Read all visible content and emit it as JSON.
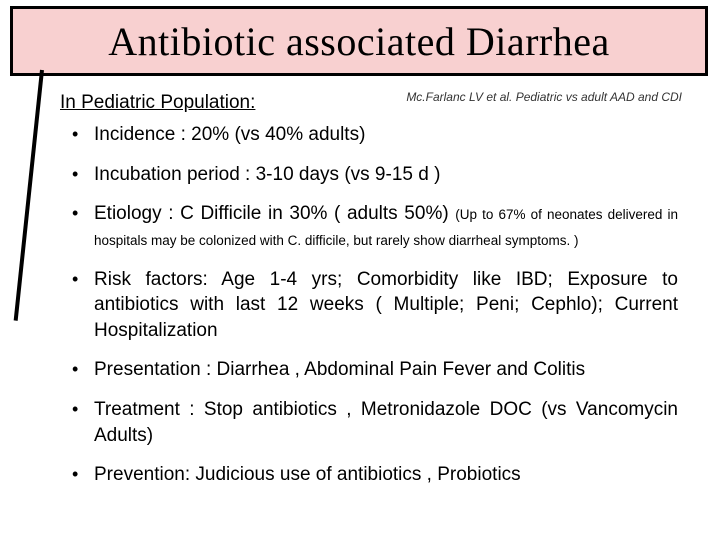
{
  "colors": {
    "title_bg": "#f8d0d0",
    "title_border": "#000000",
    "text": "#000000",
    "background": "#ffffff"
  },
  "typography": {
    "title_font": "Georgia serif",
    "title_size_pt": 40,
    "body_font": "Trebuchet MS sans-serif",
    "body_size_pt": 19,
    "fine_size_pt": 13.5
  },
  "title": "Antibiotic associated Diarrhea",
  "citation": {
    "author": "Mc.Farlanc LV",
    "etal": " et al. ",
    "tail": "Pediatric vs adult AAD and CDI"
  },
  "subhead": "In Pediatric Population:",
  "bullets": [
    {
      "parts": [
        "Incidence : 20% (vs 40% adults)"
      ]
    },
    {
      "parts": [
        "Incubation period : 3-10 days (vs 9-15 d )"
      ]
    },
    {
      "parts": [
        "Etiology : C Difficile in 30%   ( adults 50%) ",
        "(Up to 67% of neonates delivered in hospitals may be colonized with  C. difficile, but rarely show diarrheal symptoms. )"
      ],
      "fine_from": 1
    },
    {
      "parts": [
        "Risk factors: Age 1-4 yrs; Comorbidity like IBD; Exposure to antibiotics with last 12 weeks ( Multiple; Peni; Cephlo); Current Hospitalization"
      ]
    },
    {
      "parts": [
        "Presentation : Diarrhea , Abdominal Pain Fever and Colitis"
      ]
    },
    {
      "parts": [
        "Treatment : Stop antibiotics , Metronidazole DOC (vs Vancomycin Adults)"
      ]
    },
    {
      "parts": [
        "Prevention: Judicious use of antibiotics , Probiotics"
      ]
    }
  ]
}
